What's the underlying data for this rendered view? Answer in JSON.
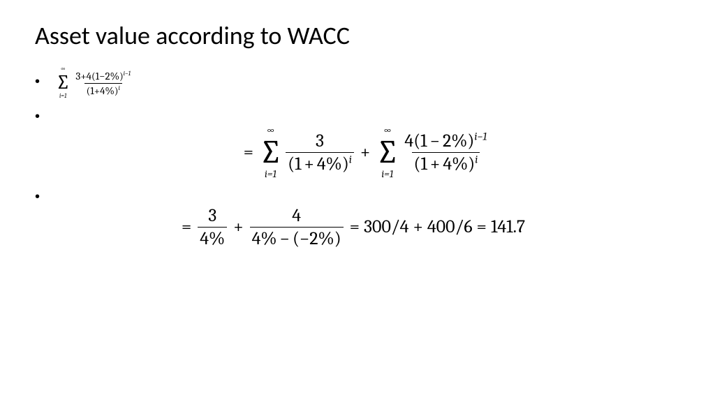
{
  "slide": {
    "title": "Asset value according to WACC",
    "bullet_glyph": "•",
    "text_color": "#000000",
    "background_color": "#ffffff",
    "title_fontsize": 36,
    "body_fontsize_small": 20,
    "body_fontsize_med": 26,
    "font_family_title": "Calibri",
    "font_family_math": "Cambria Math"
  },
  "eq1": {
    "sum_upper": "∞",
    "sum_symbol": "∑",
    "sum_lower_var": "i",
    "sum_lower_eq": "=",
    "sum_lower_val": "1",
    "num_a": "3",
    "num_plus": "+",
    "num_b": "4",
    "num_lpar": "(",
    "num_one": "1",
    "num_minus": "−",
    "num_pct": "2%",
    "num_rpar": ")",
    "num_exp_var": "i",
    "num_exp_minus": "−",
    "num_exp_one": "1",
    "den_lpar": "(",
    "den_one": "1",
    "den_plus": "+",
    "den_pct": "4%",
    "den_rpar": ")",
    "den_exp": "i"
  },
  "eq2": {
    "eq": "=",
    "plus": "+",
    "sum_upper": "∞",
    "sum_symbol": "∑",
    "sum_lower_var": "i",
    "sum_lower_eq": "=",
    "sum_lower_val": "1",
    "t1_num": "3",
    "t1_den_lpar": "(",
    "t1_den_one": "1",
    "t1_den_plus": "+",
    "t1_den_pct": "4%",
    "t1_den_rpar": ")",
    "t1_den_exp": "i",
    "t2_num_a": "4",
    "t2_num_lpar": "(",
    "t2_num_one": "1",
    "t2_num_minus": "−",
    "t2_num_pct": "2%",
    "t2_num_rpar": ")",
    "t2_num_exp_var": "i",
    "t2_num_exp_minus": "−",
    "t2_num_exp_one": "1",
    "t2_den_lpar": "(",
    "t2_den_one": "1",
    "t2_den_plus": "+",
    "t2_den_pct": "4%",
    "t2_den_rpar": ")",
    "t2_den_exp": "i"
  },
  "eq3": {
    "eq1": "=",
    "f1_num": "3",
    "f1_den": "4%",
    "plus1": "+",
    "f2_num": "4",
    "f2_den_a": "4%",
    "f2_den_minus": "−",
    "f2_den_lpar": "(",
    "f2_den_neg": "−",
    "f2_den_b": "2%",
    "f2_den_rpar": ")",
    "eq2": "=",
    "r1_a": "300",
    "r1_slash": "/",
    "r1_b": "4",
    "plus2": "+",
    "r2_a": "400",
    "r2_slash": "/",
    "r2_b": "6",
    "eq3": "=",
    "result": "141.7"
  }
}
